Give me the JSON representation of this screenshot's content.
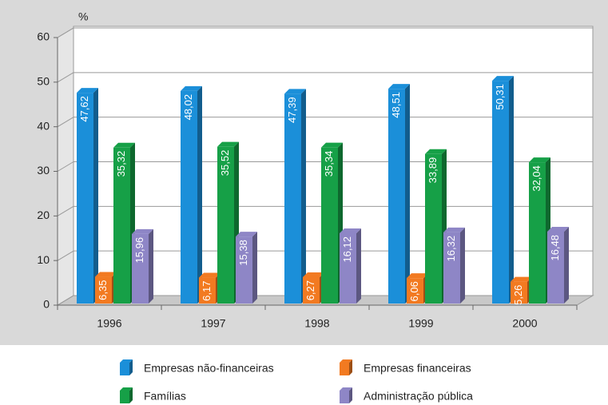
{
  "chart_data": {
    "type": "bar",
    "y_label": "%",
    "categories": [
      "1996",
      "1997",
      "1998",
      "1999",
      "2000"
    ],
    "series": [
      {
        "name": "Empresas não-financeiras",
        "color": "#1b8fd9",
        "values": [
          47.62,
          48.02,
          47.39,
          48.51,
          50.31
        ],
        "value_labels": [
          "47,62",
          "48,02",
          "47,39",
          "48,51",
          "50,31"
        ]
      },
      {
        "name": "Empresas financeiras",
        "color": "#f27a21",
        "values": [
          6.35,
          6.17,
          6.27,
          6.06,
          5.26
        ],
        "value_labels": [
          "6,35",
          "6,17",
          "6,27",
          "6,06",
          "5,26"
        ]
      },
      {
        "name": "Famílias",
        "color": "#16a047",
        "values": [
          35.32,
          35.52,
          35.34,
          33.89,
          32.04
        ],
        "value_labels": [
          "35,32",
          "35,52",
          "35,34",
          "33,89",
          "32,04"
        ]
      },
      {
        "name": "Administração pública",
        "color": "#8e86c6",
        "values": [
          15.96,
          15.38,
          16.12,
          16.32,
          16.48
        ],
        "value_labels": [
          "15,96",
          "15,38",
          "16,12",
          "16,32",
          "16,48"
        ]
      }
    ],
    "ylim": [
      0,
      60
    ],
    "yticks": [
      0,
      10,
      20,
      30,
      40,
      50,
      60
    ],
    "grid": true
  }
}
